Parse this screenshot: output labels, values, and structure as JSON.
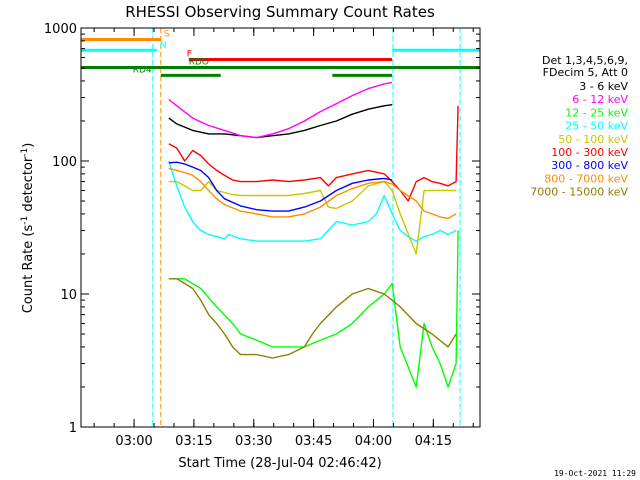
{
  "chart_data": {
    "type": "line",
    "title": "RHESSI Observing Summary Count Rates",
    "xlabel": "Start Time (28-Jul-04 02:46:42)",
    "ylabel_main": "Count Rate (s",
    "ylabel_sup1": "-1",
    "ylabel_mid": " detector",
    "ylabel_sup2": "-1",
    "ylabel_end": ")",
    "y_scale": "log",
    "ylim": [
      1,
      1000
    ],
    "xlim_minutes_after_start": [
      0,
      100
    ],
    "x_ticks": [
      {
        "label": "03:00",
        "t": 13.3
      },
      {
        "label": "03:15",
        "t": 28.3
      },
      {
        "label": "03:30",
        "t": 43.3
      },
      {
        "label": "03:45",
        "t": 58.3
      },
      {
        "label": "04:00",
        "t": 73.3
      },
      {
        "label": "04:15",
        "t": 88.3
      }
    ],
    "y_ticks": [
      {
        "label": "1",
        "v": 1
      },
      {
        "label": "10",
        "v": 10
      },
      {
        "label": "100",
        "v": 100
      },
      {
        "label": "1000",
        "v": 1000
      }
    ],
    "legend_header": [
      "Det 1,3,4,5,6,9,",
      "FDecim 5, Att 0"
    ],
    "legend_placement": "right",
    "series": [
      {
        "name": "3 - 6 keV",
        "color": "#000000",
        "x": [
          22,
          24,
          28,
          32,
          36,
          40,
          44,
          48,
          52,
          56,
          60,
          64,
          68,
          72,
          76,
          78
        ],
        "y": [
          210,
          190,
          170,
          160,
          160,
          155,
          150,
          155,
          160,
          170,
          185,
          200,
          225,
          245,
          260,
          265
        ]
      },
      {
        "name": "6 - 12 keV",
        "color": "#ff00ff",
        "x": [
          22,
          24,
          28,
          32,
          36,
          40,
          44,
          48,
          52,
          56,
          60,
          64,
          68,
          72,
          76,
          78
        ],
        "y": [
          290,
          260,
          210,
          185,
          170,
          155,
          150,
          160,
          175,
          200,
          235,
          270,
          310,
          350,
          380,
          390
        ]
      },
      {
        "name": "12 - 25 keV",
        "color": "#00ff00",
        "x": [
          22,
          26,
          30,
          34,
          38,
          40,
          44,
          48,
          52,
          56,
          60,
          64,
          68,
          72,
          76,
          78,
          80,
          84,
          86,
          88,
          90,
          92,
          94,
          94.5
        ],
        "y": [
          13,
          13,
          11,
          8,
          6,
          5,
          4.5,
          4,
          4,
          4,
          4.5,
          5,
          6,
          8,
          10,
          12,
          4,
          2,
          6,
          4,
          3,
          2,
          3,
          30
        ]
      },
      {
        "name": "25 - 50 keV",
        "color": "#00ffff",
        "x": [
          22,
          23,
          24,
          26,
          28,
          30,
          32,
          34,
          36,
          37,
          40,
          44,
          48,
          52,
          56,
          60,
          64,
          68,
          72,
          74,
          76,
          78,
          80,
          82,
          84,
          86,
          88,
          90,
          92,
          94
        ],
        "y": [
          100,
          80,
          65,
          45,
          35,
          30,
          28,
          27,
          26,
          28,
          26,
          25,
          25,
          25,
          25,
          26,
          35,
          33,
          35,
          40,
          55,
          40,
          30,
          27,
          25,
          27,
          28,
          30,
          28,
          30
        ]
      },
      {
        "name": "50 - 100 keV",
        "color": "#c8c800",
        "x": [
          22,
          24,
          26,
          28,
          30,
          32,
          34,
          36,
          38,
          40,
          44,
          48,
          52,
          56,
          60,
          62,
          64,
          68,
          72,
          76,
          78,
          80,
          84,
          86,
          88,
          90,
          92,
          94
        ],
        "y": [
          70,
          70,
          65,
          60,
          60,
          70,
          60,
          58,
          56,
          55,
          55,
          55,
          55,
          57,
          60,
          45,
          44,
          50,
          65,
          70,
          60,
          40,
          20,
          60,
          60,
          60,
          60,
          60
        ]
      },
      {
        "name": "100 - 300 keV",
        "color": "#ff0000",
        "x": [
          22,
          24,
          26,
          28,
          30,
          32,
          34,
          36,
          38,
          40,
          44,
          48,
          52,
          56,
          60,
          62,
          64,
          68,
          72,
          76,
          78,
          80,
          82,
          84,
          86,
          88,
          90,
          92,
          94,
          94.5
        ],
        "y": [
          135,
          125,
          100,
          120,
          110,
          95,
          85,
          78,
          72,
          70,
          70,
          72,
          70,
          72,
          75,
          65,
          75,
          80,
          85,
          80,
          70,
          60,
          50,
          70,
          75,
          70,
          68,
          65,
          70,
          260
        ]
      },
      {
        "name": "300 - 800 keV",
        "color": "#0000ff",
        "x": [
          22,
          24,
          26,
          28,
          30,
          32,
          34,
          36,
          40,
          44,
          48,
          52,
          56,
          60,
          64,
          68,
          72,
          76,
          78
        ],
        "y": [
          97,
          98,
          95,
          90,
          85,
          75,
          60,
          52,
          46,
          43,
          42,
          42,
          45,
          50,
          60,
          68,
          72,
          74,
          72
        ]
      },
      {
        "name": "800 - 7000 keV",
        "color": "#ff8c00",
        "x": [
          22,
          24,
          26,
          28,
          30,
          32,
          34,
          36,
          40,
          44,
          48,
          52,
          56,
          60,
          64,
          68,
          72,
          76,
          78,
          80,
          84,
          86,
          88,
          90,
          92,
          94
        ],
        "y": [
          88,
          85,
          82,
          78,
          70,
          60,
          52,
          47,
          42,
          40,
          38,
          38,
          40,
          45,
          55,
          62,
          68,
          70,
          67,
          60,
          50,
          42,
          40,
          38,
          37,
          40
        ]
      },
      {
        "name": "7000 - 15000 keV",
        "color": "#8b8000",
        "x": [
          22,
          24,
          26,
          28,
          30,
          32,
          34,
          36,
          38,
          40,
          44,
          48,
          52,
          56,
          58,
          60,
          64,
          68,
          72,
          76,
          78,
          80,
          84,
          88,
          92,
          94
        ],
        "y": [
          13,
          13,
          12,
          11,
          9,
          7,
          6,
          5,
          4,
          3.5,
          3.5,
          3.3,
          3.5,
          4,
          5,
          6,
          8,
          10,
          11,
          10,
          9,
          8,
          6,
          5,
          4,
          5
        ]
      }
    ],
    "flag_bars": [
      {
        "label": "S",
        "color": "#ff8c00",
        "y": 820,
        "segments": [
          [
            0,
            20
          ]
        ]
      },
      {
        "label": "N",
        "color": "#00ffff",
        "y": 680,
        "segments": [
          [
            0,
            19
          ],
          [
            78,
            100
          ]
        ]
      },
      {
        "label": "F",
        "color": "#ff0000",
        "y": 580,
        "segments": [
          [
            27,
            78
          ]
        ]
      },
      {
        "label": "RDO",
        "color": "#008000",
        "y": 505,
        "segments": [
          [
            0,
            100
          ]
        ]
      },
      {
        "label": "RD4",
        "color": "#008000",
        "y": 440,
        "segments": [
          [
            20,
            35
          ],
          [
            63,
            78
          ]
        ]
      }
    ],
    "vertical_markers": [
      {
        "color": "#00ffff",
        "t": 18
      },
      {
        "color": "#ff8c00",
        "t": 20
      },
      {
        "color": "#00ffff",
        "t": 78.2
      },
      {
        "color": "#00ffff",
        "t": 95
      }
    ]
  },
  "footer": {
    "timestamp": "19-Oct-2021 11:29"
  }
}
